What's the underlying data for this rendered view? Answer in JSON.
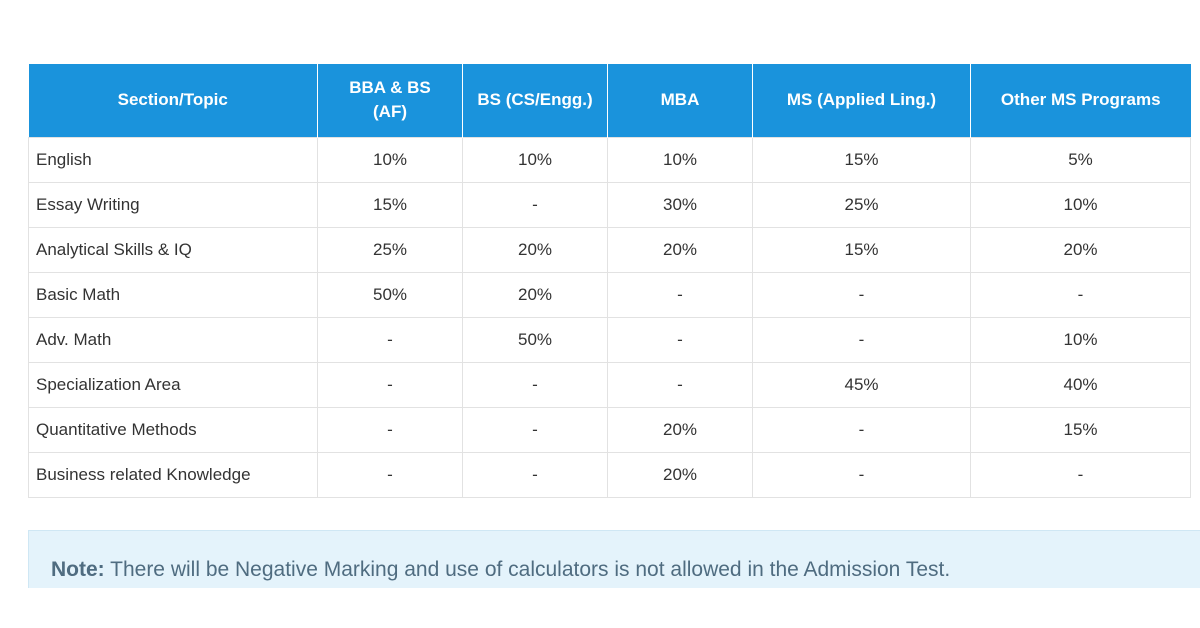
{
  "table": {
    "headers": [
      "Section/Topic",
      "BBA & BS (AF)",
      "BS (CS/Engg.)",
      "MBA",
      "MS (Applied Ling.)",
      "Other MS Programs"
    ],
    "rows": [
      [
        "English",
        "10%",
        "10%",
        "10%",
        "15%",
        "5%"
      ],
      [
        "Essay Writing",
        "15%",
        "-",
        "30%",
        "25%",
        "10%"
      ],
      [
        "Analytical Skills & IQ",
        "25%",
        "20%",
        "20%",
        "15%",
        "20%"
      ],
      [
        "Basic Math",
        "50%",
        "20%",
        "-",
        "-",
        "-"
      ],
      [
        "Adv. Math",
        "-",
        "50%",
        "-",
        "-",
        "10%"
      ],
      [
        "Specialization Area",
        "-",
        "-",
        "-",
        "45%",
        "40%"
      ],
      [
        "Quantitative Methods",
        "-",
        "-",
        "20%",
        "-",
        "15%"
      ],
      [
        "Business related Knowledge",
        "-",
        "-",
        "20%",
        "-",
        "-"
      ]
    ]
  },
  "note": {
    "label": "Note:",
    "text": " There will be Negative Marking and use of calculators is not allowed in the Admission Test."
  },
  "colors": {
    "header_bg": "#1a93dc",
    "note_bg": "#e4f3fb"
  }
}
